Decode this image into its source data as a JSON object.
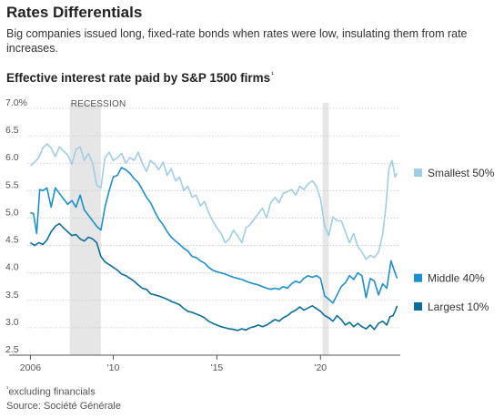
{
  "header": {
    "title": "Rates Differentials",
    "subtitle": "Big companies issued long, fixed-rate bonds when rates were low, insulating them from rate increases."
  },
  "footer": {
    "footnote_mark": "¹",
    "footnote": "excluding financials",
    "source": "Source: Société Générale"
  },
  "chart_data": {
    "type": "line",
    "title": "Effective interest rate paid by S&P 1500 firms",
    "title_mark": "¹",
    "xlabel": "",
    "ylabel": "",
    "xlim": [
      2005.85,
      2023.85
    ],
    "ylim": [
      2.5,
      7.0
    ],
    "y_ticks": [
      {
        "value": 7.0,
        "label": "7.0%"
      },
      {
        "value": 6.5,
        "label": "6.5"
      },
      {
        "value": 6.0,
        "label": "6.0"
      },
      {
        "value": 5.5,
        "label": "5.5"
      },
      {
        "value": 5.0,
        "label": "5.0"
      },
      {
        "value": 4.5,
        "label": "4.5"
      },
      {
        "value": 4.0,
        "label": "4.0"
      },
      {
        "value": 3.5,
        "label": "3.5"
      },
      {
        "value": 3.0,
        "label": "3.0"
      },
      {
        "value": 2.5,
        "label": "2.5"
      }
    ],
    "x_ticks": [
      {
        "value": 2006,
        "label": "2006"
      },
      {
        "value": 2010,
        "label": "'10"
      },
      {
        "value": 2015,
        "label": "'15"
      },
      {
        "value": 2020,
        "label": "'20"
      }
    ],
    "grid": true,
    "shaded_regions": [
      {
        "label": "RECESSION",
        "start": 2007.9,
        "end": 2009.4
      },
      {
        "label": "",
        "start": 2020.1,
        "end": 2020.4
      }
    ],
    "legend_placement": "right, inline at line ends",
    "series": [
      {
        "name": "Smallest 50%",
        "color": "#9fcde8",
        "points": [
          [
            2006.0,
            5.95
          ],
          [
            2006.2,
            6.02
          ],
          [
            2006.4,
            6.1
          ],
          [
            2006.6,
            6.28
          ],
          [
            2006.8,
            6.35
          ],
          [
            2007.0,
            6.28
          ],
          [
            2007.2,
            6.12
          ],
          [
            2007.4,
            6.3
          ],
          [
            2007.6,
            6.22
          ],
          [
            2007.8,
            6.15
          ],
          [
            2008.0,
            5.98
          ],
          [
            2008.2,
            6.25
          ],
          [
            2008.4,
            6.3
          ],
          [
            2008.6,
            6.05
          ],
          [
            2008.8,
            6.18
          ],
          [
            2009.0,
            6.0
          ],
          [
            2009.2,
            5.6
          ],
          [
            2009.4,
            5.55
          ],
          [
            2009.6,
            6.1
          ],
          [
            2009.8,
            6.2
          ],
          [
            2010.0,
            6.05
          ],
          [
            2010.2,
            6.1
          ],
          [
            2010.4,
            6.18
          ],
          [
            2010.6,
            6.0
          ],
          [
            2010.8,
            6.1
          ],
          [
            2011.0,
            6.05
          ],
          [
            2011.2,
            6.2
          ],
          [
            2011.4,
            6.0
          ],
          [
            2011.6,
            5.85
          ],
          [
            2011.8,
            6.05
          ],
          [
            2012.0,
            5.98
          ],
          [
            2012.2,
            5.88
          ],
          [
            2012.4,
            6.02
          ],
          [
            2012.6,
            5.78
          ],
          [
            2012.8,
            5.9
          ],
          [
            2013.0,
            5.68
          ],
          [
            2013.2,
            5.75
          ],
          [
            2013.4,
            5.5
          ],
          [
            2013.6,
            5.58
          ],
          [
            2013.8,
            5.38
          ],
          [
            2014.0,
            5.42
          ],
          [
            2014.2,
            5.22
          ],
          [
            2014.4,
            5.3
          ],
          [
            2014.6,
            5.1
          ],
          [
            2014.8,
            4.95
          ],
          [
            2015.0,
            4.82
          ],
          [
            2015.2,
            4.72
          ],
          [
            2015.4,
            4.55
          ],
          [
            2015.6,
            4.62
          ],
          [
            2015.8,
            4.78
          ],
          [
            2016.0,
            4.68
          ],
          [
            2016.2,
            4.55
          ],
          [
            2016.4,
            4.82
          ],
          [
            2016.6,
            4.88
          ],
          [
            2016.8,
            4.98
          ],
          [
            2017.0,
            5.08
          ],
          [
            2017.2,
            5.18
          ],
          [
            2017.4,
            5.0
          ],
          [
            2017.6,
            5.28
          ],
          [
            2017.8,
            5.38
          ],
          [
            2018.0,
            5.28
          ],
          [
            2018.2,
            5.45
          ],
          [
            2018.4,
            5.48
          ],
          [
            2018.6,
            5.52
          ],
          [
            2018.8,
            5.42
          ],
          [
            2019.0,
            5.58
          ],
          [
            2019.2,
            5.52
          ],
          [
            2019.4,
            5.62
          ],
          [
            2019.6,
            5.68
          ],
          [
            2019.8,
            5.58
          ],
          [
            2020.0,
            5.35
          ],
          [
            2020.2,
            4.85
          ],
          [
            2020.4,
            4.68
          ],
          [
            2020.6,
            5.02
          ],
          [
            2020.8,
            4.95
          ],
          [
            2021.0,
            4.95
          ],
          [
            2021.2,
            4.75
          ],
          [
            2021.4,
            4.55
          ],
          [
            2021.6,
            4.72
          ],
          [
            2021.8,
            4.48
          ],
          [
            2022.0,
            4.38
          ],
          [
            2022.2,
            4.25
          ],
          [
            2022.4,
            4.32
          ],
          [
            2022.6,
            4.28
          ],
          [
            2022.8,
            4.38
          ],
          [
            2023.0,
            4.7
          ],
          [
            2023.15,
            5.2
          ],
          [
            2023.3,
            5.9
          ],
          [
            2023.45,
            6.05
          ],
          [
            2023.6,
            5.75
          ],
          [
            2023.7,
            5.82
          ]
        ]
      },
      {
        "name": "Middle 40%",
        "color": "#1b8fd0",
        "points": [
          [
            2006.0,
            5.1
          ],
          [
            2006.15,
            5.08
          ],
          [
            2006.3,
            4.72
          ],
          [
            2006.45,
            5.52
          ],
          [
            2006.6,
            5.5
          ],
          [
            2006.8,
            5.55
          ],
          [
            2007.0,
            5.2
          ],
          [
            2007.2,
            5.55
          ],
          [
            2007.4,
            5.45
          ],
          [
            2007.6,
            5.35
          ],
          [
            2007.8,
            5.25
          ],
          [
            2008.0,
            5.32
          ],
          [
            2008.2,
            5.2
          ],
          [
            2008.4,
            5.42
          ],
          [
            2008.6,
            5.15
          ],
          [
            2008.8,
            5.05
          ],
          [
            2009.0,
            4.95
          ],
          [
            2009.2,
            4.85
          ],
          [
            2009.4,
            4.78
          ],
          [
            2009.6,
            5.2
          ],
          [
            2009.8,
            5.5
          ],
          [
            2010.0,
            5.75
          ],
          [
            2010.2,
            5.78
          ],
          [
            2010.4,
            5.92
          ],
          [
            2010.6,
            5.88
          ],
          [
            2010.8,
            5.82
          ],
          [
            2011.0,
            5.72
          ],
          [
            2011.2,
            5.65
          ],
          [
            2011.4,
            5.52
          ],
          [
            2011.6,
            5.38
          ],
          [
            2011.8,
            5.28
          ],
          [
            2012.0,
            5.12
          ],
          [
            2012.2,
            4.98
          ],
          [
            2012.4,
            4.88
          ],
          [
            2012.6,
            4.75
          ],
          [
            2012.8,
            4.65
          ],
          [
            2013.0,
            4.58
          ],
          [
            2013.2,
            4.52
          ],
          [
            2013.4,
            4.45
          ],
          [
            2013.6,
            4.4
          ],
          [
            2013.8,
            4.3
          ],
          [
            2014.0,
            4.28
          ],
          [
            2014.2,
            4.22
          ],
          [
            2014.4,
            4.18
          ],
          [
            2014.6,
            4.1
          ],
          [
            2014.8,
            4.05
          ],
          [
            2015.0,
            4.02
          ],
          [
            2015.2,
            4.0
          ],
          [
            2015.4,
            3.98
          ],
          [
            2015.6,
            3.95
          ],
          [
            2015.8,
            3.92
          ],
          [
            2016.0,
            3.9
          ],
          [
            2016.2,
            3.88
          ],
          [
            2016.4,
            3.85
          ],
          [
            2016.6,
            3.82
          ],
          [
            2016.8,
            3.8
          ],
          [
            2017.0,
            3.78
          ],
          [
            2017.2,
            3.75
          ],
          [
            2017.4,
            3.72
          ],
          [
            2017.6,
            3.7
          ],
          [
            2017.8,
            3.72
          ],
          [
            2018.0,
            3.7
          ],
          [
            2018.2,
            3.75
          ],
          [
            2018.4,
            3.72
          ],
          [
            2018.6,
            3.8
          ],
          [
            2018.8,
            3.85
          ],
          [
            2019.0,
            3.82
          ],
          [
            2019.2,
            3.9
          ],
          [
            2019.4,
            3.95
          ],
          [
            2019.6,
            3.92
          ],
          [
            2019.8,
            3.95
          ],
          [
            2020.0,
            3.9
          ],
          [
            2020.2,
            3.58
          ],
          [
            2020.4,
            3.52
          ],
          [
            2020.6,
            3.45
          ],
          [
            2020.8,
            3.6
          ],
          [
            2021.0,
            3.75
          ],
          [
            2021.2,
            3.82
          ],
          [
            2021.4,
            3.95
          ],
          [
            2021.6,
            3.88
          ],
          [
            2021.8,
            4.0
          ],
          [
            2022.0,
            3.95
          ],
          [
            2022.2,
            3.55
          ],
          [
            2022.4,
            3.9
          ],
          [
            2022.6,
            3.85
          ],
          [
            2022.8,
            3.6
          ],
          [
            2023.0,
            3.8
          ],
          [
            2023.2,
            3.72
          ],
          [
            2023.4,
            4.22
          ],
          [
            2023.55,
            4.05
          ],
          [
            2023.7,
            3.9
          ]
        ]
      },
      {
        "name": "Largest 10%",
        "color": "#0a6e9c",
        "points": [
          [
            2006.0,
            4.55
          ],
          [
            2006.2,
            4.5
          ],
          [
            2006.4,
            4.55
          ],
          [
            2006.6,
            4.52
          ],
          [
            2006.8,
            4.6
          ],
          [
            2007.0,
            4.75
          ],
          [
            2007.2,
            4.85
          ],
          [
            2007.4,
            4.9
          ],
          [
            2007.6,
            4.82
          ],
          [
            2007.8,
            4.75
          ],
          [
            2008.0,
            4.68
          ],
          [
            2008.2,
            4.7
          ],
          [
            2008.4,
            4.62
          ],
          [
            2008.6,
            4.58
          ],
          [
            2008.8,
            4.65
          ],
          [
            2009.0,
            4.62
          ],
          [
            2009.2,
            4.55
          ],
          [
            2009.4,
            4.3
          ],
          [
            2009.6,
            4.2
          ],
          [
            2009.8,
            4.15
          ],
          [
            2010.0,
            4.1
          ],
          [
            2010.2,
            4.05
          ],
          [
            2010.4,
            3.98
          ],
          [
            2010.6,
            3.95
          ],
          [
            2010.8,
            3.9
          ],
          [
            2011.0,
            3.85
          ],
          [
            2011.2,
            3.78
          ],
          [
            2011.4,
            3.72
          ],
          [
            2011.6,
            3.7
          ],
          [
            2011.8,
            3.62
          ],
          [
            2012.0,
            3.6
          ],
          [
            2012.2,
            3.58
          ],
          [
            2012.4,
            3.55
          ],
          [
            2012.6,
            3.52
          ],
          [
            2012.8,
            3.48
          ],
          [
            2013.0,
            3.45
          ],
          [
            2013.2,
            3.42
          ],
          [
            2013.4,
            3.35
          ],
          [
            2013.6,
            3.3
          ],
          [
            2013.8,
            3.28
          ],
          [
            2014.0,
            3.25
          ],
          [
            2014.2,
            3.22
          ],
          [
            2014.4,
            3.18
          ],
          [
            2014.6,
            3.12
          ],
          [
            2014.8,
            3.08
          ],
          [
            2015.0,
            3.05
          ],
          [
            2015.2,
            3.02
          ],
          [
            2015.4,
            3.0
          ],
          [
            2015.6,
            2.98
          ],
          [
            2015.8,
            2.97
          ],
          [
            2016.0,
            2.95
          ],
          [
            2016.2,
            2.98
          ],
          [
            2016.4,
            2.96
          ],
          [
            2016.6,
            3.0
          ],
          [
            2016.8,
            3.02
          ],
          [
            2017.0,
            3.05
          ],
          [
            2017.2,
            3.02
          ],
          [
            2017.4,
            3.05
          ],
          [
            2017.6,
            3.1
          ],
          [
            2017.8,
            3.15
          ],
          [
            2018.0,
            3.12
          ],
          [
            2018.2,
            3.18
          ],
          [
            2018.4,
            3.22
          ],
          [
            2018.6,
            3.28
          ],
          [
            2018.8,
            3.32
          ],
          [
            2019.0,
            3.38
          ],
          [
            2019.2,
            3.32
          ],
          [
            2019.4,
            3.36
          ],
          [
            2019.6,
            3.4
          ],
          [
            2019.8,
            3.35
          ],
          [
            2020.0,
            3.3
          ],
          [
            2020.2,
            3.22
          ],
          [
            2020.4,
            3.18
          ],
          [
            2020.6,
            3.12
          ],
          [
            2020.8,
            3.22
          ],
          [
            2021.0,
            3.15
          ],
          [
            2021.2,
            3.05
          ],
          [
            2021.4,
            3.1
          ],
          [
            2021.6,
            3.02
          ],
          [
            2021.8,
            3.08
          ],
          [
            2022.0,
            3.02
          ],
          [
            2022.2,
            2.98
          ],
          [
            2022.4,
            3.05
          ],
          [
            2022.6,
            2.97
          ],
          [
            2022.8,
            3.08
          ],
          [
            2023.0,
            3.12
          ],
          [
            2023.2,
            3.05
          ],
          [
            2023.35,
            3.2
          ],
          [
            2023.5,
            3.22
          ],
          [
            2023.6,
            3.3
          ],
          [
            2023.7,
            3.4
          ]
        ]
      }
    ]
  }
}
